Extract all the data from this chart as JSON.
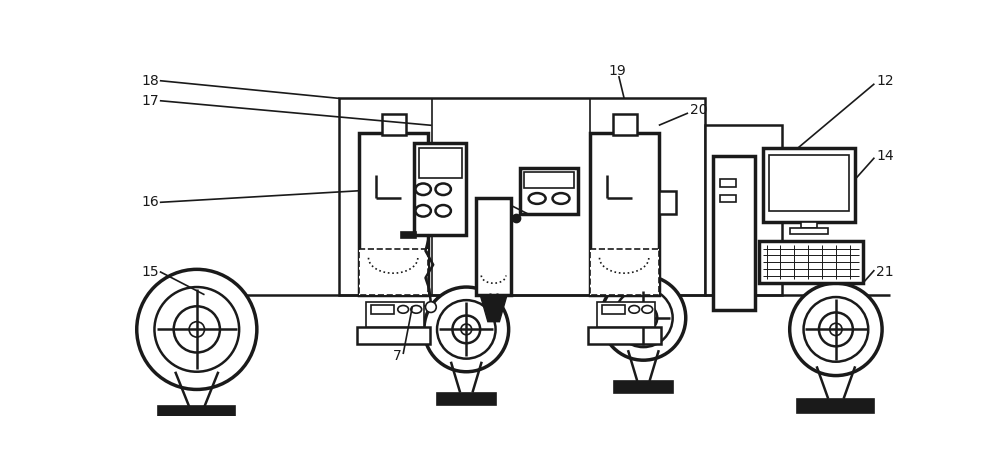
{
  "bg_color": "#ffffff",
  "line_color": "#1a1a1a",
  "label_fontsize": 10,
  "figsize": [
    10.0,
    4.67
  ],
  "dpi": 100
}
